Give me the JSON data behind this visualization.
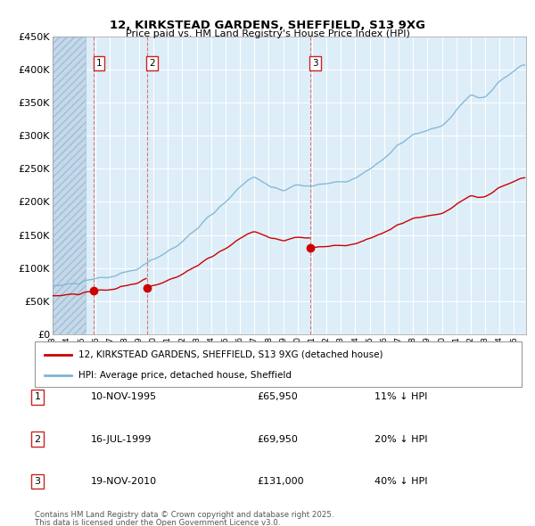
{
  "title": "12, KIRKSTEAD GARDENS, SHEFFIELD, S13 9XG",
  "subtitle": "Price paid vs. HM Land Registry's House Price Index (HPI)",
  "ylim": [
    0,
    450000
  ],
  "yticks": [
    0,
    50000,
    100000,
    150000,
    200000,
    250000,
    300000,
    350000,
    400000,
    450000
  ],
  "ytick_labels": [
    "£0",
    "£50K",
    "£100K",
    "£150K",
    "£200K",
    "£250K",
    "£300K",
    "£350K",
    "£400K",
    "£450K"
  ],
  "xlim_start": 1993.0,
  "xlim_end": 2025.83,
  "sale_events": [
    {
      "num": 1,
      "date": "10-NOV-1995",
      "year": 1995.87,
      "price": 65950,
      "pct": "11%",
      "dir": "↓"
    },
    {
      "num": 2,
      "date": "16-JUL-1999",
      "year": 1999.54,
      "price": 69950,
      "pct": "20%",
      "dir": "↓"
    },
    {
      "num": 3,
      "date": "19-NOV-2010",
      "year": 2010.88,
      "price": 131000,
      "pct": "40%",
      "dir": "↓"
    }
  ],
  "legend_label_red": "12, KIRKSTEAD GARDENS, SHEFFIELD, S13 9XG (detached house)",
  "legend_label_blue": "HPI: Average price, detached house, Sheffield",
  "footer_line1": "Contains HM Land Registry data © Crown copyright and database right 2025.",
  "footer_line2": "This data is licensed under the Open Government Licence v3.0.",
  "hpi_color": "#7fb3d3",
  "sale_color": "#cc0000",
  "chart_bg_color": "#ddeef8",
  "hatch_color": "#c8dff0",
  "grid_color": "#ffffff",
  "vline_color": "#e06060"
}
